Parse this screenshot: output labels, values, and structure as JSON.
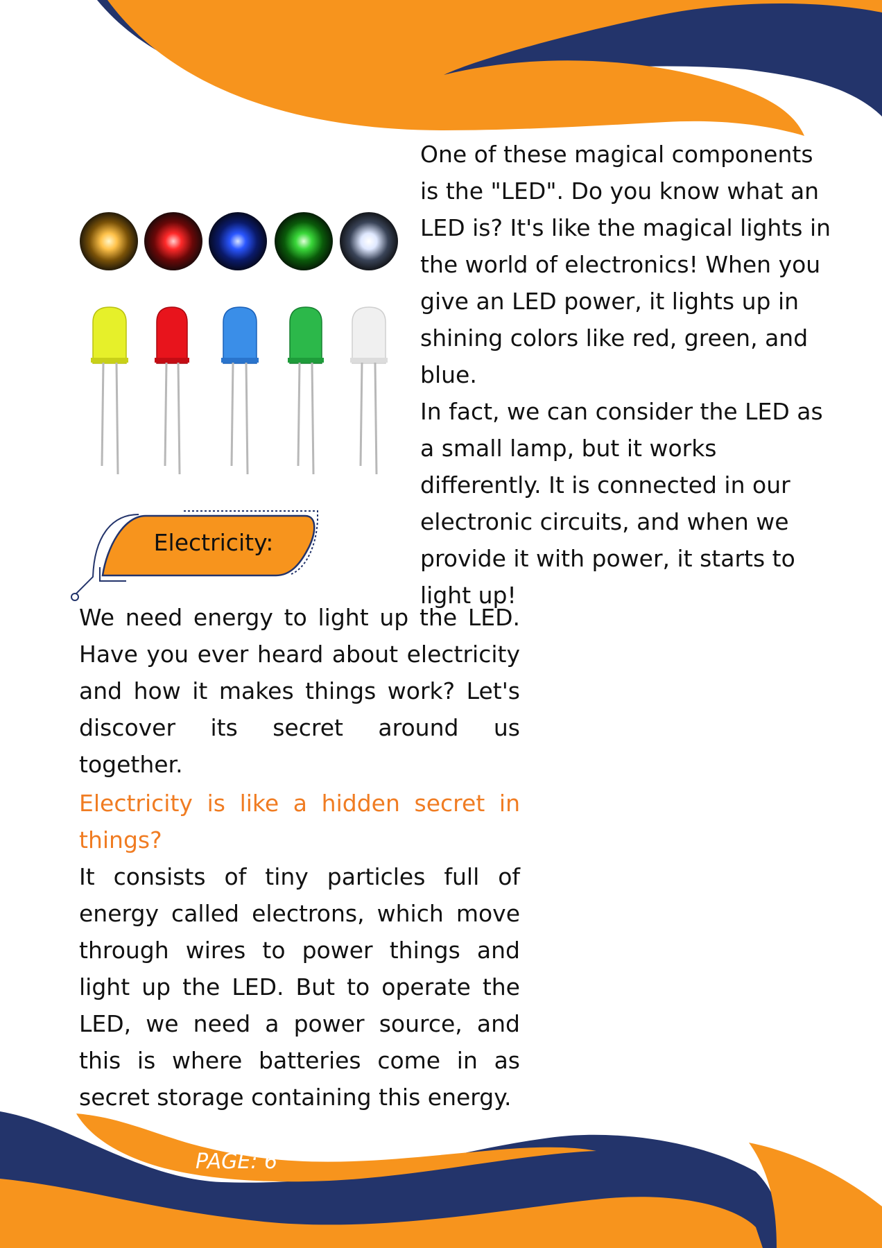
{
  "colors": {
    "orange": "#f7941d",
    "navy": "#23346b",
    "highlight_text": "#f07c22"
  },
  "intro_paragraph": "One of these magical components is the \"LED\". Do you know what an LED is? It's like the magical lights in the world of electronics! When you give an LED power, it lights up in shining colors like red, green, and blue.",
  "lamp_paragraph": "In fact, we can consider the LED as a small lamp, but it works differently. It is connected in our electronic circuits, and when we provide it with power, it starts to light up!",
  "section_heading": "Electricity:",
  "energy_paragraph": "We need energy to light up the LED. Have you ever heard about electricity and how it makes things work? Let's discover its secret around us together.",
  "highlight_question": "Electricity is like a hidden secret in things?",
  "electrons_paragraph": "It consists of tiny particles full of energy called electrons, which move through wires to power things and light up the LED. But to operate the LED, we need a power source, and this is where batteries come in as secret storage containing this energy.",
  "footer": {
    "page_label": "PAGE: ",
    "page_number": "6"
  },
  "led_illustration": {
    "colors": [
      "yellow",
      "red",
      "blue",
      "green",
      "white"
    ]
  }
}
